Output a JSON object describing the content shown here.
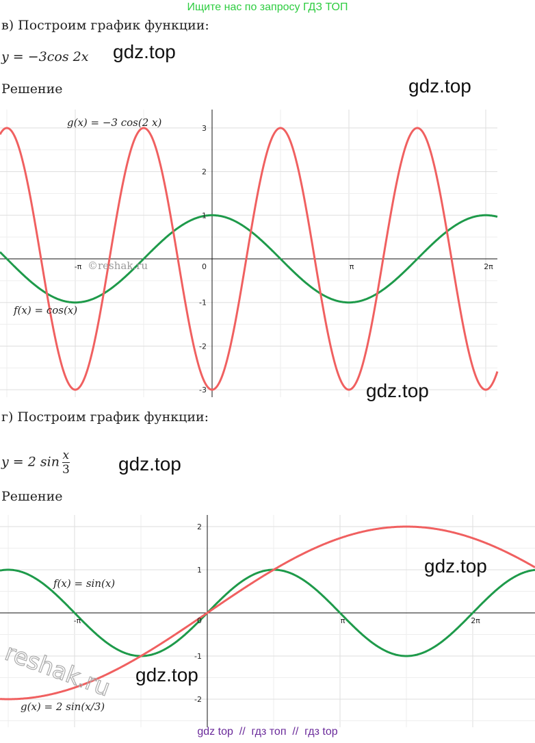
{
  "banner": "Ищите нас по запросу ГДЗ ТОП",
  "part_v": {
    "heading": "в) Построим график функции:",
    "formula": "y = −3cos 2x",
    "solution": "Решение",
    "graph": {
      "g_label": "g(x)  =  −3 cos(2 x)",
      "f_label": "f(x)  =  cos(x)",
      "copyright": "©reshak.ru",
      "y_labels": [
        "3",
        "2",
        "1",
        "-1",
        "-2",
        "-3"
      ],
      "origin": "0",
      "x_labels": [
        "-π",
        "π",
        "2π"
      ]
    }
  },
  "part_g": {
    "heading": "г) Построим график функции:",
    "formula": {
      "prefix": "y = 2 sin",
      "numerator": "x",
      "denominator": "3"
    },
    "solution": "Решение",
    "graph": {
      "f_label": "f(x)  =  sin(x)",
      "g_label": "g(x)  =  2 sin(x/3)",
      "copyright": "reshak.ru",
      "y_labels": [
        "2",
        "1",
        "-1",
        "-2"
      ],
      "origin": "0",
      "x_labels": [
        "-π",
        "π",
        "2π"
      ]
    }
  },
  "watermarks": [
    "gdz.top",
    "gdz.top",
    "gdz.top",
    "gdz.top",
    "gdz.top",
    "gdz.top"
  ],
  "footer": "gdz top  //  гдз топ  //  гдз top"
}
